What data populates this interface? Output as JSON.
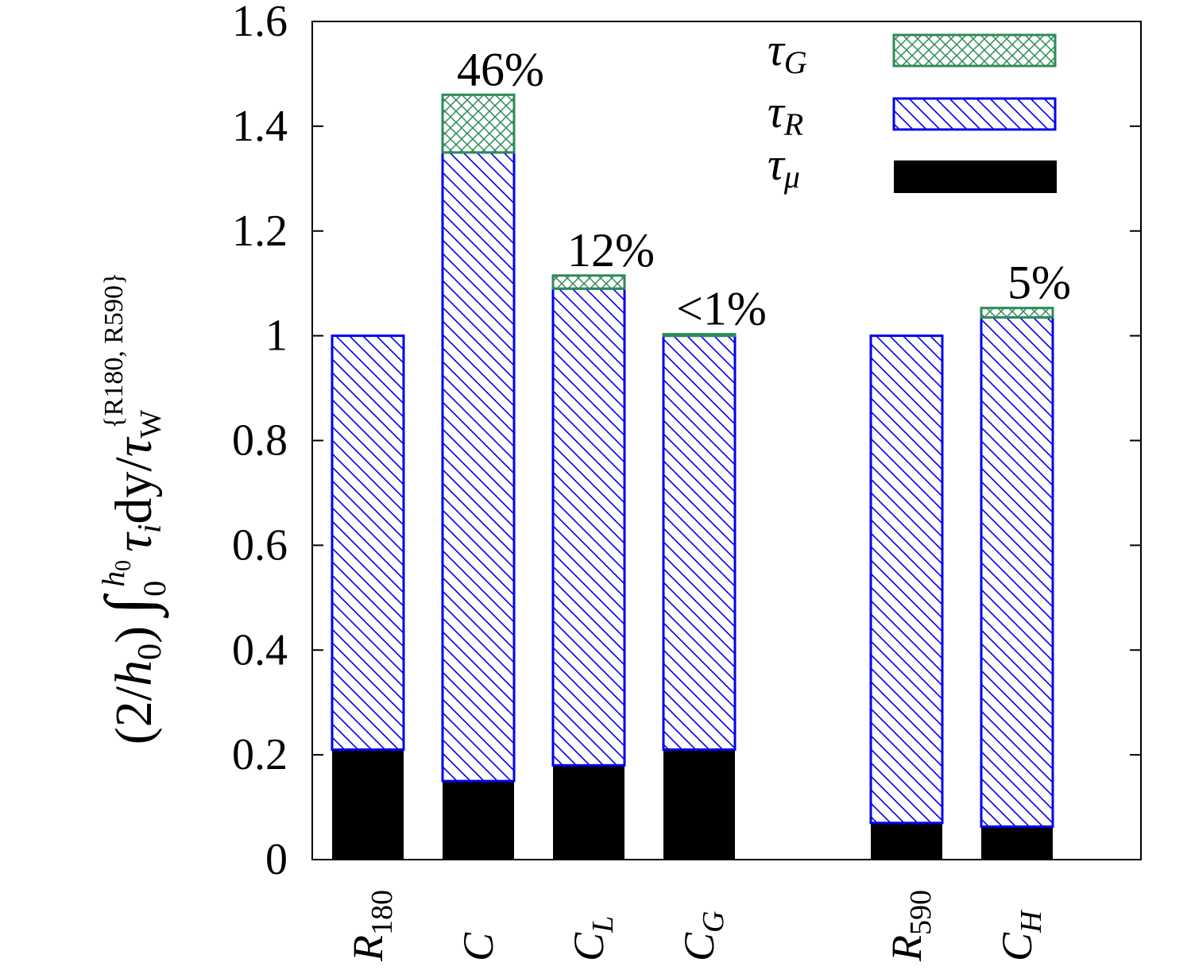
{
  "chart_data": {
    "type": "bar",
    "stacked": true,
    "categories": [
      "R180",
      "C",
      "CL",
      "CG",
      "",
      "R590",
      "CH"
    ],
    "series": [
      {
        "name": "τμ",
        "color": "#000000",
        "pattern": "solid",
        "values": [
          0.21,
          0.15,
          0.18,
          0.21,
          null,
          0.07,
          0.063
        ]
      },
      {
        "name": "τR",
        "color": "#0000ee",
        "pattern": "diagonal-hatch",
        "values": [
          0.79,
          1.2,
          0.91,
          0.79,
          null,
          0.93,
          0.972
        ]
      },
      {
        "name": "τG",
        "color": "#2e8b57",
        "pattern": "cross-hatch",
        "values": [
          0.0,
          0.11,
          0.025,
          0.003,
          null,
          0.0,
          0.018
        ]
      }
    ],
    "annotations": [
      {
        "category": "C",
        "text": "46%"
      },
      {
        "category": "CL",
        "text": "12%"
      },
      {
        "category": "CG",
        "text": "<1%"
      },
      {
        "category": "CH",
        "text": "5%"
      }
    ],
    "ylim": [
      0,
      1.6
    ],
    "yticks": [
      "0",
      "0.2",
      "0.4",
      "0.6",
      "0.8",
      "1",
      "1.2",
      "1.4",
      "1.6"
    ],
    "ylabel": "(2/h0) ∫0h0 τi dy / τW{R180, R590}",
    "xlabel": "",
    "legend_position": "top-right",
    "grid": false
  },
  "category_labels": [
    {
      "base": "R",
      "sub": "180"
    },
    {
      "base": "C",
      "sub": ""
    },
    {
      "base": "C",
      "sub": "L"
    },
    {
      "base": "C",
      "sub": "G"
    },
    null,
    {
      "base": "R",
      "sub": "590"
    },
    {
      "base": "C",
      "sub": "H"
    }
  ],
  "legend": [
    {
      "symbol": "τ",
      "sub": "G"
    },
    {
      "symbol": "τ",
      "sub": "R"
    },
    {
      "symbol": "τ",
      "sub": "μ"
    }
  ],
  "ylabel_parts": {
    "prefix": "(2/",
    "h": "h",
    "h_sub": "0",
    "close": ")",
    "integral": "∫",
    "int_lower": "0",
    "int_upper_h": "h",
    "int_upper_sub": "0",
    "tau": "τ",
    "tau_sub": "i",
    "dy": "dy",
    "slash": "/",
    "tauw": "τ",
    "tauw_sub": "W",
    "tauw_sup": "{R180, R590}"
  },
  "colors": {
    "mu": "#000000",
    "R": "#0000ee",
    "G": "#2e8b57",
    "axis": "#000000"
  }
}
